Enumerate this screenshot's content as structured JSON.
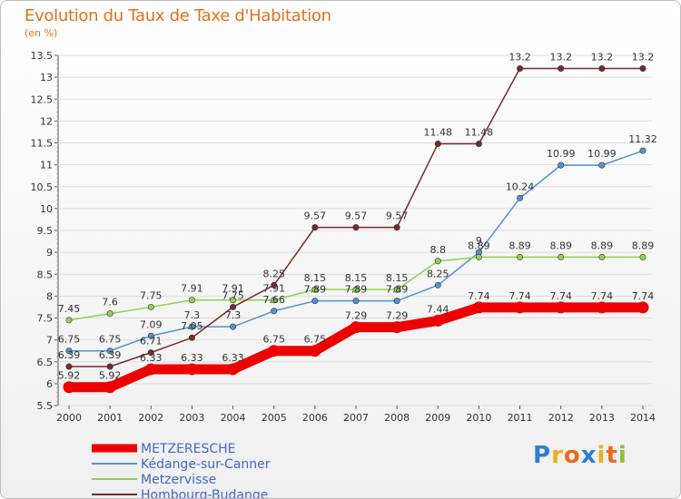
{
  "title": "Evolution du Taux de Taxe d'Habitation",
  "subtitle": "(en %)",
  "logo": [
    "P",
    "r",
    "o",
    "x",
    "i",
    "t",
    "i"
  ],
  "logo_colors": [
    "#2f7fd0",
    "#e8b020",
    "#e86a20",
    "#2f7fd0",
    "#e8b020",
    "#e86a20",
    "#8fbf30"
  ],
  "chart_data": {
    "type": "line",
    "title": "Evolution du Taux de Taxe d'Habitation",
    "ylabel": "(en %)",
    "xlabel": "",
    "x": [
      2000,
      2001,
      2002,
      2003,
      2004,
      2005,
      2006,
      2007,
      2008,
      2009,
      2010,
      2011,
      2012,
      2013,
      2014
    ],
    "ylim": [
      5.5,
      13.5
    ],
    "yticks": [
      5.5,
      6,
      6.5,
      7,
      7.5,
      8,
      8.5,
      9,
      9.5,
      10,
      10.5,
      11,
      11.5,
      12,
      12.5,
      13,
      13.5
    ],
    "grid": "horizontal",
    "legend_position": "bottom-left",
    "series": [
      {
        "name": "METZERESCHE",
        "color": "#ee0000",
        "highlight": true,
        "values": [
          5.92,
          5.92,
          6.33,
          6.33,
          6.33,
          6.75,
          6.75,
          7.29,
          7.29,
          7.44,
          7.74,
          7.74,
          7.74,
          7.74,
          7.74
        ]
      },
      {
        "name": "Kédange-sur-Canner",
        "color": "#4f93d6",
        "highlight": false,
        "values": [
          6.75,
          6.75,
          7.09,
          7.3,
          7.3,
          7.66,
          7.89,
          7.89,
          7.89,
          8.25,
          9,
          10.24,
          10.99,
          10.99,
          11.32
        ]
      },
      {
        "name": "Metzervisse",
        "color": "#8fd14f",
        "highlight": false,
        "values": [
          7.45,
          7.6,
          7.75,
          7.91,
          7.91,
          7.91,
          8.15,
          8.15,
          8.15,
          8.8,
          8.89,
          8.89,
          8.89,
          8.89,
          8.89
        ]
      },
      {
        "name": "Hombourg-Budange",
        "color": "#7a2a2a",
        "highlight": false,
        "values": [
          6.39,
          6.39,
          6.71,
          7.05,
          7.75,
          8.25,
          9.57,
          9.57,
          9.57,
          11.48,
          11.48,
          13.2,
          13.2,
          13.2,
          13.2
        ]
      }
    ],
    "value_labels": [
      [
        "5.92",
        "5.92",
        "6.33",
        "6.33",
        "6.33",
        "6.75",
        "6.75",
        "7.29",
        "7.29",
        "7.44",
        "7.74",
        "7.74",
        "7.74",
        "7.74",
        "7.74"
      ],
      [
        "6.75",
        "6.75",
        "7.09",
        "7.3",
        "7.3",
        "7.66",
        "7.89",
        "7.89",
        "7.89",
        "8.25",
        "9",
        "10.24",
        "10.99",
        "10.99",
        "11.32"
      ],
      [
        "7.45",
        "7.6",
        "7.75",
        "7.91",
        "7.91",
        "7.91",
        "8.15",
        "8.15",
        "8.15",
        "8.8",
        "8.89",
        "8.89",
        "8.89",
        "8.89",
        "8.89"
      ],
      [
        "6.39",
        "6.39",
        "6.71",
        "7.05",
        "7.75",
        "8.25",
        "9.57",
        "9.57",
        "9.57",
        "11.48",
        "11.48",
        "13.2",
        "13.2",
        "13.2",
        "13.2"
      ]
    ]
  }
}
